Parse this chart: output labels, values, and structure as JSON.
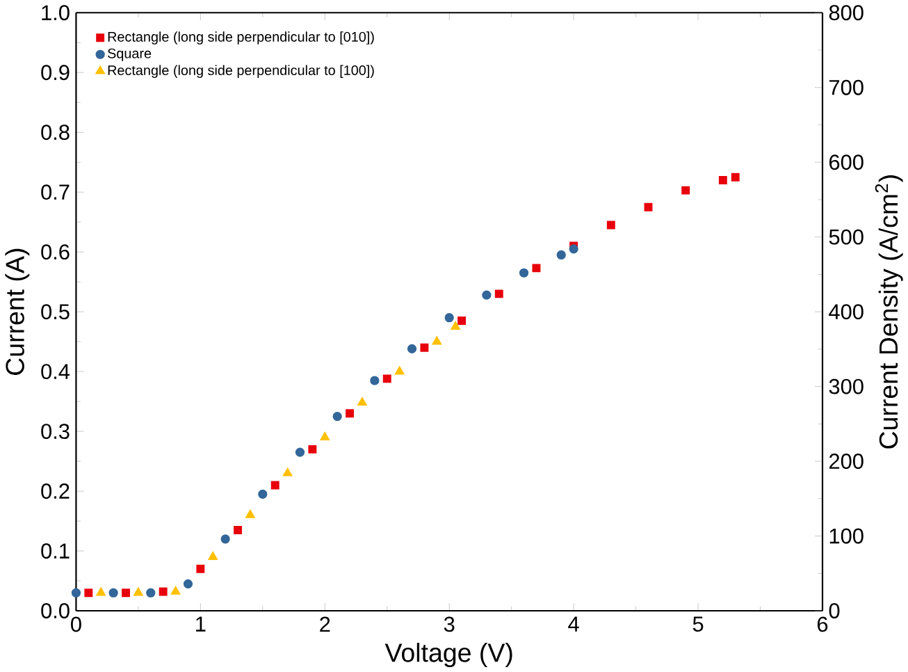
{
  "chart_data": {
    "type": "scatter",
    "xlabel": "Voltage (V)",
    "ylabel": "Current (A)",
    "y2label": "Current Density (A/cm$^{2}$)",
    "xlim": [
      0,
      6
    ],
    "xticks": [
      0,
      1,
      2,
      3,
      4,
      5,
      6
    ],
    "ylim": [
      0,
      1.0
    ],
    "yticks": [
      {
        "value": 0,
        "label": "0.0"
      },
      0.1,
      0.2,
      0.3,
      0.4,
      0.5,
      0.6,
      0.7,
      0.8,
      0.9,
      {
        "value": 1.0,
        "label": "1.0"
      }
    ],
    "y2lim": [
      0,
      800
    ],
    "y2ticks": [
      0,
      100,
      200,
      300,
      400,
      500,
      600,
      700,
      800
    ],
    "legend": "top left",
    "grid": false,
    "series": [
      {
        "name": "Rectangle (long side perpendicular to [010])",
        "color": "#e8000b",
        "marker": "square",
        "x": [
          0.1,
          0.4,
          0.7,
          1.0,
          1.3,
          1.6,
          1.9,
          2.2,
          2.5,
          2.8,
          3.1,
          3.4,
          3.7,
          4.0,
          4.3,
          4.6,
          4.9,
          5.2,
          5.3
        ],
        "values": [
          0.03,
          0.03,
          0.032,
          0.07,
          0.135,
          0.21,
          0.27,
          0.33,
          0.388,
          0.44,
          0.485,
          0.53,
          0.573,
          0.61,
          0.645,
          0.675,
          0.703,
          0.72,
          0.725
        ]
      },
      {
        "name": "Square",
        "color": "#336699",
        "marker": "circle",
        "x": [
          0.0,
          0.3,
          0.6,
          0.9,
          1.2,
          1.5,
          1.8,
          2.1,
          2.4,
          2.7,
          3.0,
          3.3,
          3.6,
          3.9,
          4.0
        ],
        "values": [
          0.03,
          0.03,
          0.03,
          0.045,
          0.12,
          0.195,
          0.265,
          0.325,
          0.385,
          0.438,
          0.49,
          0.528,
          0.565,
          0.595,
          0.605
        ]
      },
      {
        "name": "Rectangle (long side perpendicular to [100])",
        "color": "#ffc000",
        "marker": "triangle",
        "x": [
          0.2,
          0.5,
          0.8,
          1.1,
          1.4,
          1.7,
          2.0,
          2.3,
          2.6,
          2.9,
          3.05
        ],
        "values": [
          0.03,
          0.03,
          0.032,
          0.09,
          0.16,
          0.23,
          0.29,
          0.348,
          0.4,
          0.45,
          0.475
        ]
      }
    ]
  }
}
